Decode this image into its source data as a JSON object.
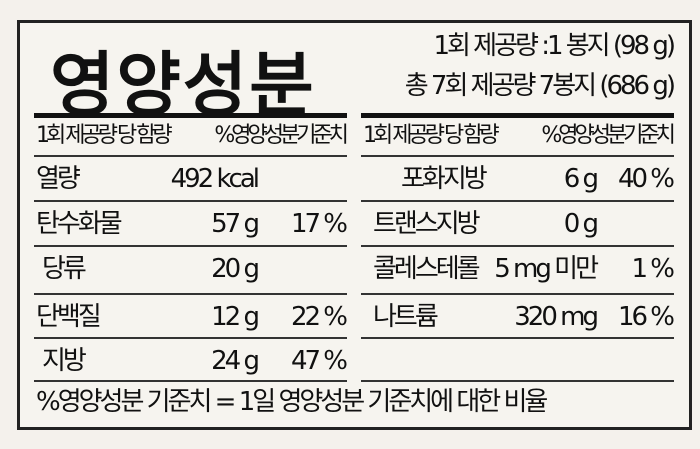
{
  "title": "영양성분",
  "serving": {
    "line1": "1회 제공량 :1 봉지 (98 g)",
    "line2": "총 7회 제공량 7봉지 (686 g)"
  },
  "header": {
    "amount": "1회 제공량 당 함량",
    "dv": "%영양성분기준치"
  },
  "left_rows": [
    {
      "name": "열량",
      "amount": "492 kcal",
      "dv": ""
    },
    {
      "name": "탄수화물",
      "amount": "57 g",
      "dv": "17 %"
    },
    {
      "name": "당류",
      "amount": "20 g",
      "dv": ""
    },
    {
      "name": "단백질",
      "amount": "12 g",
      "dv": "22 %"
    },
    {
      "name": "지방",
      "amount": "24 g",
      "dv": "47 %"
    }
  ],
  "right_rows": [
    {
      "name": "포화지방",
      "amount": "6 g",
      "dv": "40 %"
    },
    {
      "name": "트랜스지방",
      "amount": "0 g",
      "dv": ""
    },
    {
      "name": "콜레스테롤",
      "amount": "5 mg 미만",
      "dv": "1 %"
    },
    {
      "name": "나트륨",
      "amount": "320 mg",
      "dv": "16 %"
    }
  ],
  "footnote": "%영양성분 기준치 = 1일 영양성분 기준치에 대한 비율"
}
